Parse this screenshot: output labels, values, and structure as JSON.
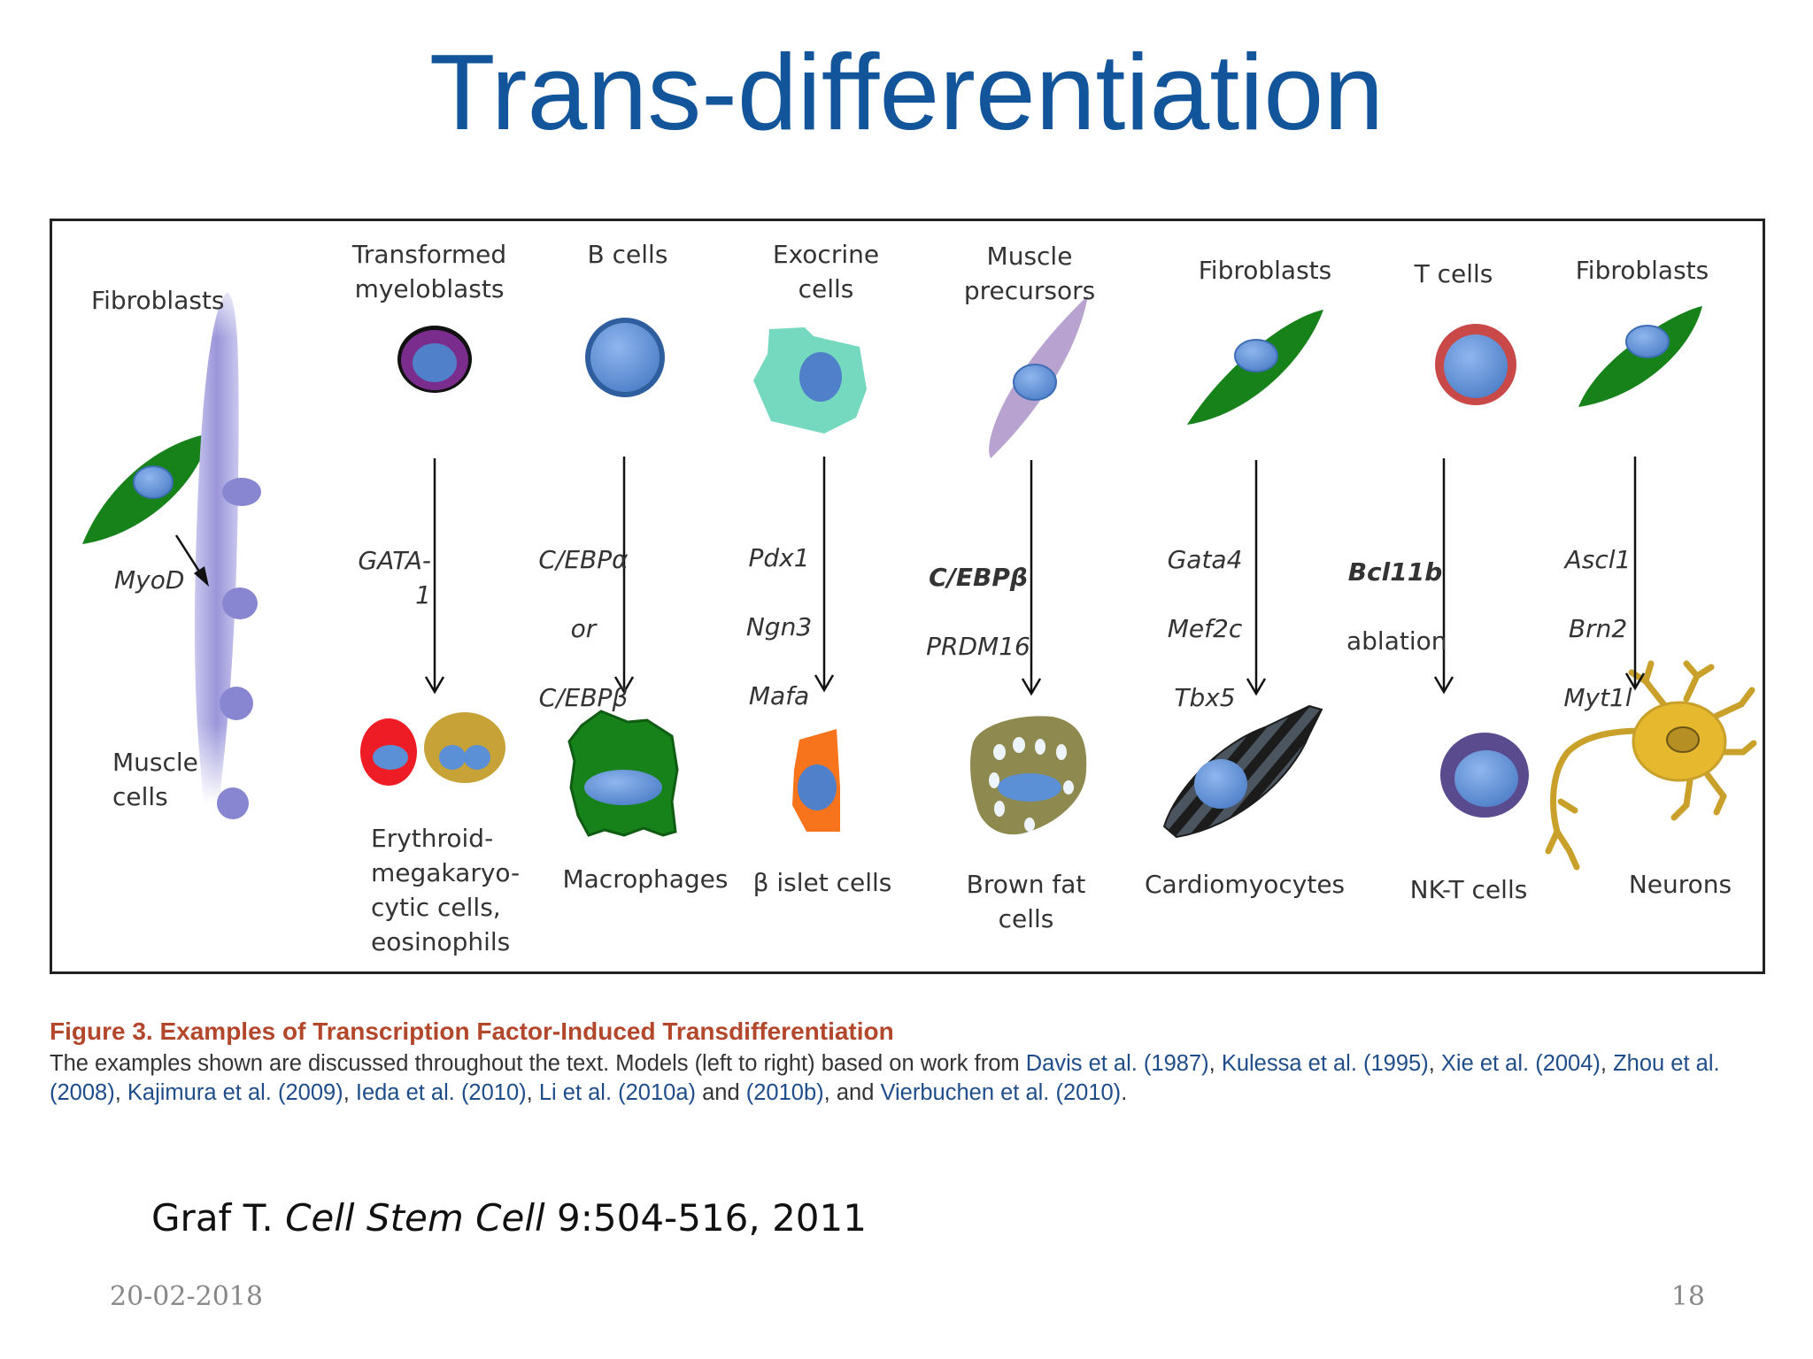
{
  "slide": {
    "title": "Trans-differentiation",
    "citation_author": "Graf T. ",
    "citation_journal": "Cell Stem Cell",
    "citation_ref": " 9:504-516, 2011",
    "footer_date": "20-02-2018",
    "page_number": "18"
  },
  "figure": {
    "columns": [
      {
        "source": "Fibroblasts",
        "factors": [
          "MyoD"
        ],
        "target": "Muscle\ncells"
      },
      {
        "source": "Transformed\nmyeloblasts",
        "factors": [
          "GATA-1"
        ],
        "target": "Erythroid-\nmegakaryo-\ncytic cells,\neosinophils"
      },
      {
        "source": "B cells",
        "factors": [
          "C/EBPα",
          "or",
          "C/EBPβ"
        ],
        "target": "Macrophages"
      },
      {
        "source": "Exocrine\ncells",
        "factors": [
          "Pdx1",
          "Ngn3",
          "Mafa"
        ],
        "target": "β islet cells"
      },
      {
        "source": "Muscle\nprecursors",
        "factors": [
          "C/EBPβ",
          "PRDM16"
        ],
        "target": "Brown fat cells"
      },
      {
        "source": "Fibroblasts",
        "factors": [
          "Gata4",
          "Mef2c",
          "Tbx5"
        ],
        "target": "Cardiomyocytes"
      },
      {
        "source": "T cells",
        "factors": [
          "Bcl11b",
          "ablation"
        ],
        "target": "NK-T cells"
      },
      {
        "source": "Fibroblasts",
        "factors": [
          "Ascl1",
          "Brn2",
          "Myt1l"
        ],
        "target": "Neurons"
      }
    ]
  },
  "caption": {
    "label": "Figure 3.",
    "title": "Examples of Transcription Factor-Induced Transdifferentiation",
    "text_intro": "The examples shown are discussed throughout the text. Models (left to right) based on work from ",
    "refs": [
      "Davis et al. (1987)",
      "Kulessa et al. (1995)",
      "Xie et al. (2004)",
      "Zhou et al. (2008)",
      "Kajimura et al. (2009)",
      "Ieda et al. (2010)",
      "Li et al. (2010a)",
      "(2010b)",
      "Vierbuchen et al. (2010)"
    ]
  },
  "colors": {
    "title": "#12559a",
    "fibroblast": "#17821a",
    "nucleus": "#5b8fd6",
    "muscle_fiber": "#9d9ad8",
    "caption_title": "#b3472b"
  }
}
